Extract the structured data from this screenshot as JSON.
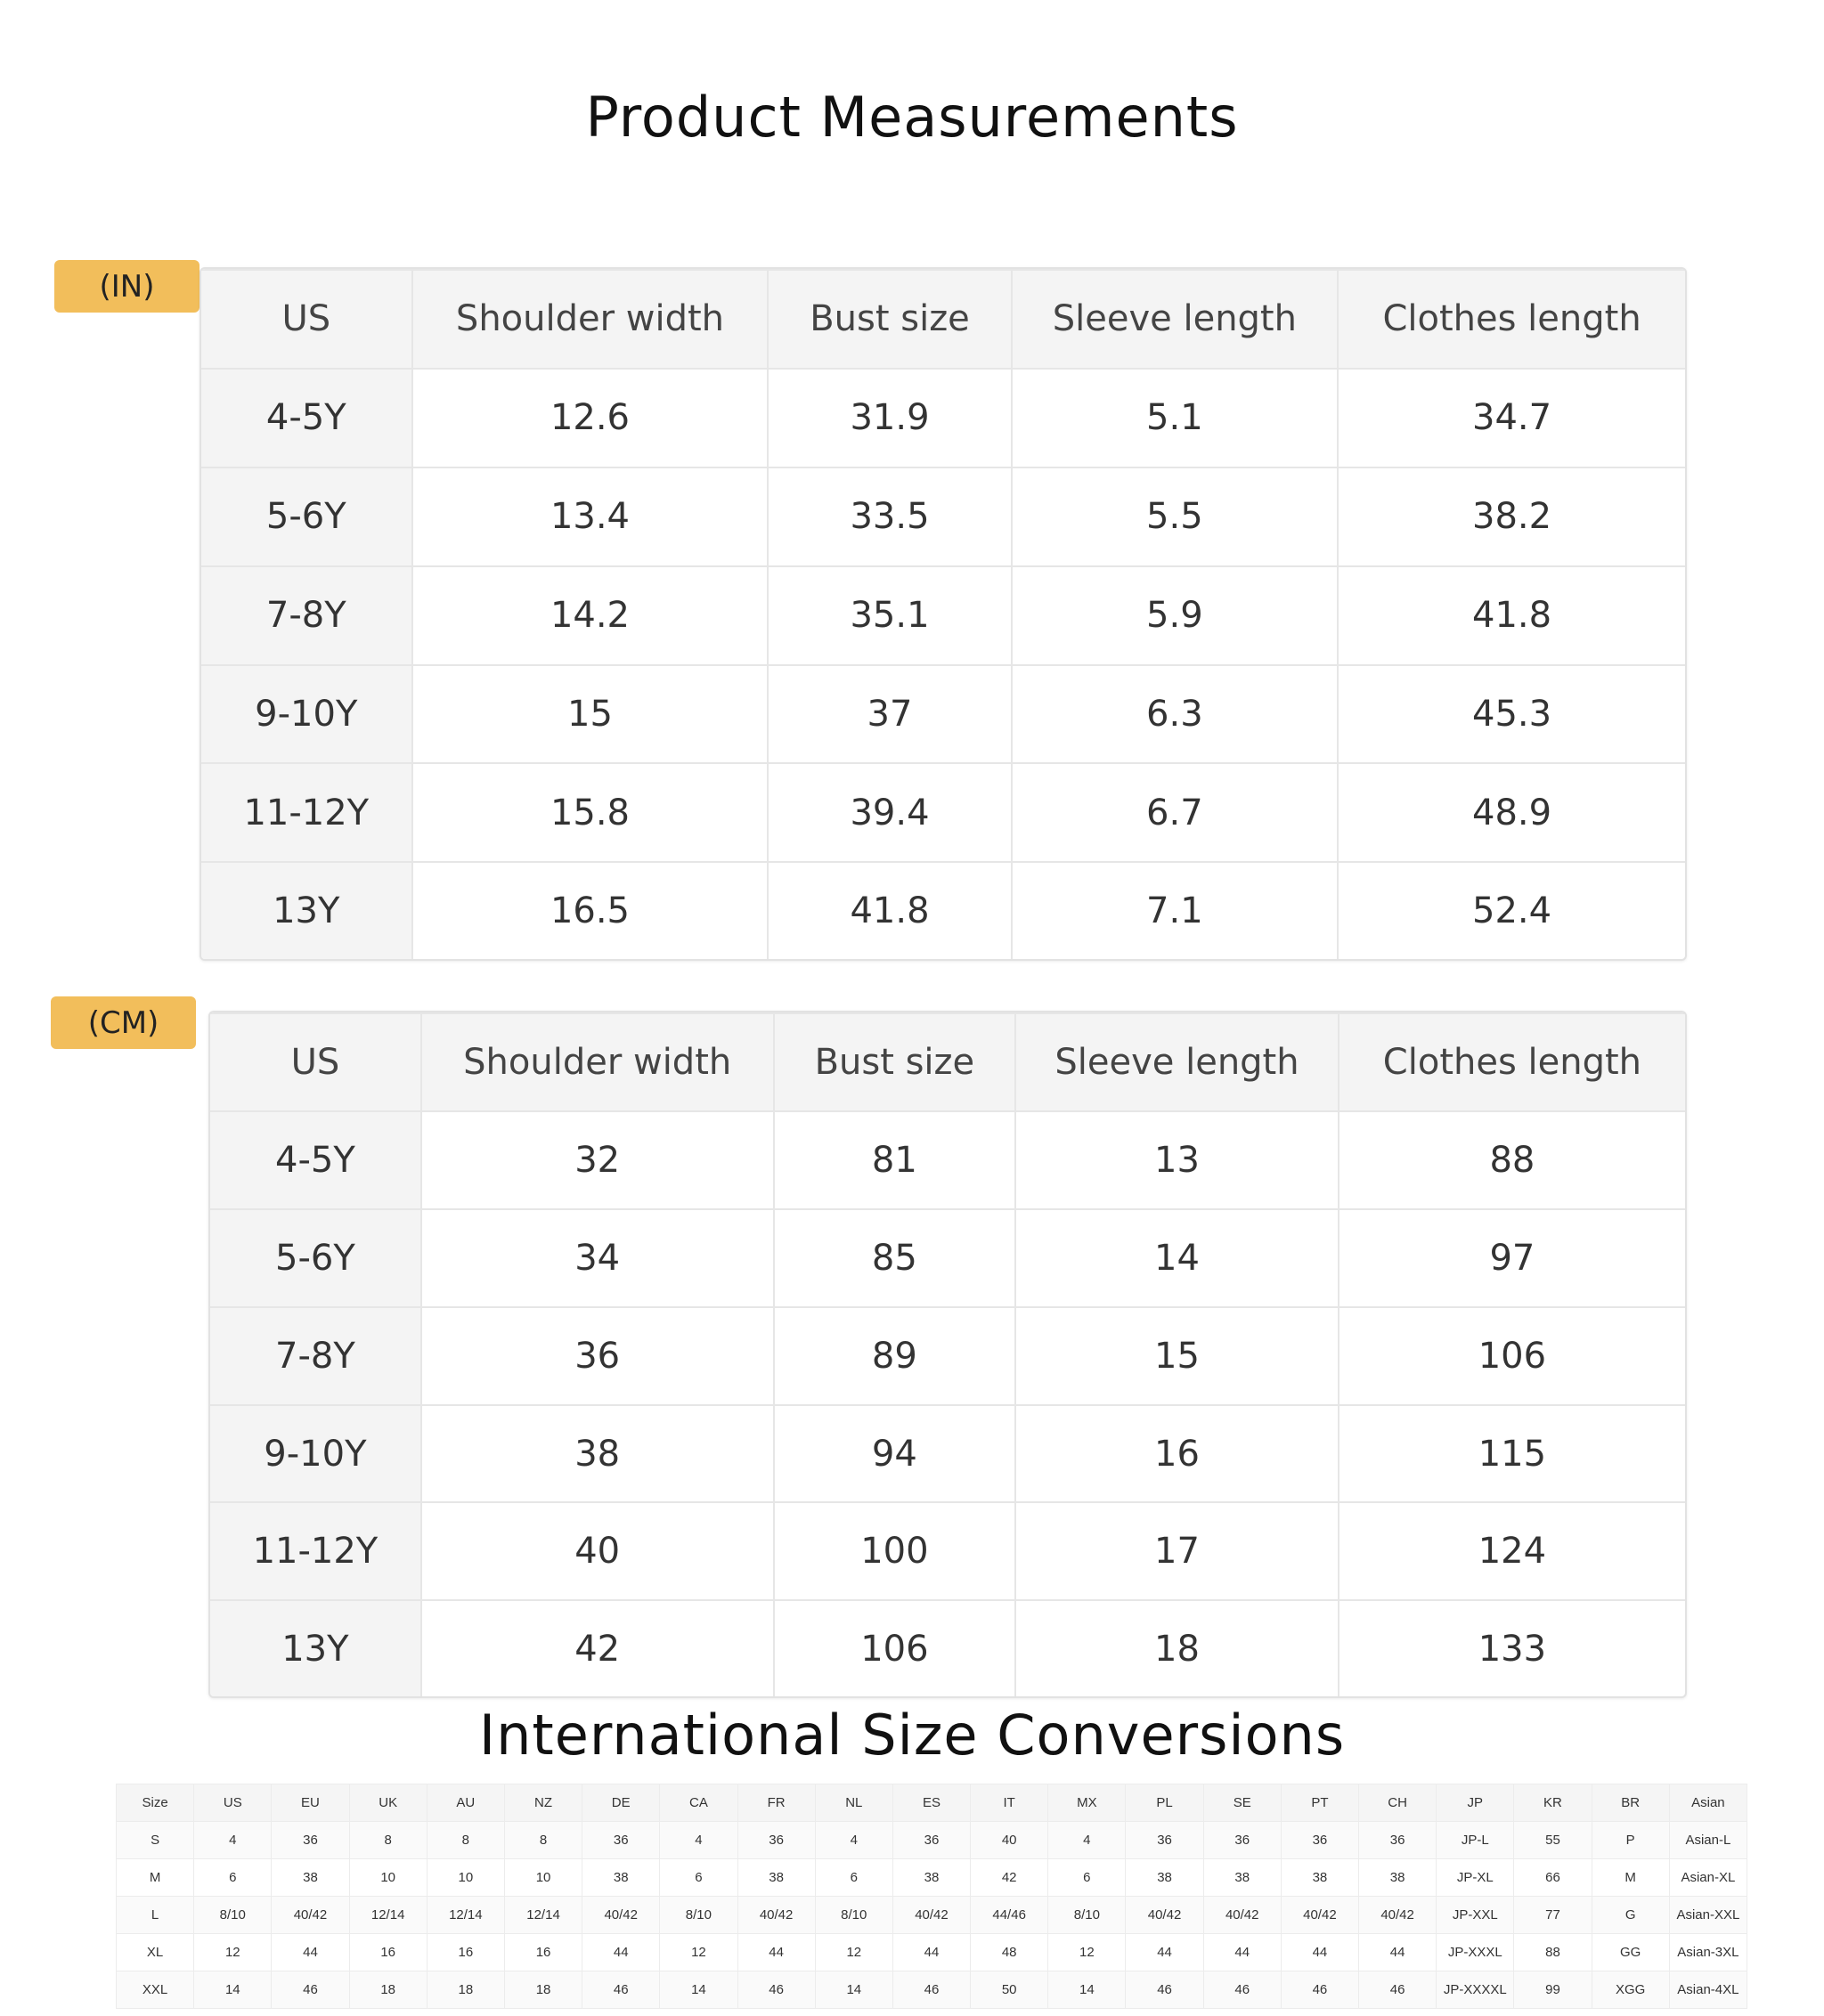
{
  "titles": {
    "main": "Product Measurements",
    "intl": "International Size Conversions"
  },
  "badges": {
    "inches": "(IN)",
    "cm": "(CM)"
  },
  "measurements_in": {
    "headers": [
      "US",
      "Shoulder width",
      "Bust size",
      "Sleeve length",
      "Clothes length"
    ],
    "rows": [
      [
        "4-5Y",
        "12.6",
        "31.9",
        "5.1",
        "34.7"
      ],
      [
        "5-6Y",
        "13.4",
        "33.5",
        "5.5",
        "38.2"
      ],
      [
        "7-8Y",
        "14.2",
        "35.1",
        "5.9",
        "41.8"
      ],
      [
        "9-10Y",
        "15",
        "37",
        "6.3",
        "45.3"
      ],
      [
        "11-12Y",
        "15.8",
        "39.4",
        "6.7",
        "48.9"
      ],
      [
        "13Y",
        "16.5",
        "41.8",
        "7.1",
        "52.4"
      ]
    ]
  },
  "measurements_cm": {
    "headers": [
      "US",
      "Shoulder width",
      "Bust size",
      "Sleeve length",
      "Clothes length"
    ],
    "rows": [
      [
        "4-5Y",
        "32",
        "81",
        "13",
        "88"
      ],
      [
        "5-6Y",
        "34",
        "85",
        "14",
        "97"
      ],
      [
        "7-8Y",
        "36",
        "89",
        "15",
        "106"
      ],
      [
        "9-10Y",
        "38",
        "94",
        "16",
        "115"
      ],
      [
        "11-12Y",
        "40",
        "100",
        "17",
        "124"
      ],
      [
        "13Y",
        "42",
        "106",
        "18",
        "133"
      ]
    ]
  },
  "conversion": {
    "headers": [
      "Size",
      "US",
      "EU",
      "UK",
      "AU",
      "NZ",
      "DE",
      "CA",
      "FR",
      "NL",
      "ES",
      "IT",
      "MX",
      "PL",
      "SE",
      "PT",
      "CH",
      "JP",
      "KR",
      "BR",
      "Asian"
    ],
    "rows": [
      [
        "S",
        "4",
        "36",
        "8",
        "8",
        "8",
        "36",
        "4",
        "36",
        "4",
        "36",
        "40",
        "4",
        "36",
        "36",
        "36",
        "36",
        "JP-L",
        "55",
        "P",
        "Asian-L"
      ],
      [
        "M",
        "6",
        "38",
        "10",
        "10",
        "10",
        "38",
        "6",
        "38",
        "6",
        "38",
        "42",
        "6",
        "38",
        "38",
        "38",
        "38",
        "JP-XL",
        "66",
        "M",
        "Asian-XL"
      ],
      [
        "L",
        "8/10",
        "40/42",
        "12/14",
        "12/14",
        "12/14",
        "40/42",
        "8/10",
        "40/42",
        "8/10",
        "40/42",
        "44/46",
        "8/10",
        "40/42",
        "40/42",
        "40/42",
        "40/42",
        "JP-XXL",
        "77",
        "G",
        "Asian-XXL"
      ],
      [
        "XL",
        "12",
        "44",
        "16",
        "16",
        "16",
        "44",
        "12",
        "44",
        "12",
        "44",
        "48",
        "12",
        "44",
        "44",
        "44",
        "44",
        "JP-XXXL",
        "88",
        "GG",
        "Asian-3XL"
      ],
      [
        "XXL",
        "14",
        "46",
        "18",
        "18",
        "18",
        "46",
        "14",
        "46",
        "14",
        "46",
        "50",
        "14",
        "46",
        "46",
        "46",
        "46",
        "JP-XXXXL",
        "99",
        "XGG",
        "Asian-4XL"
      ]
    ]
  }
}
